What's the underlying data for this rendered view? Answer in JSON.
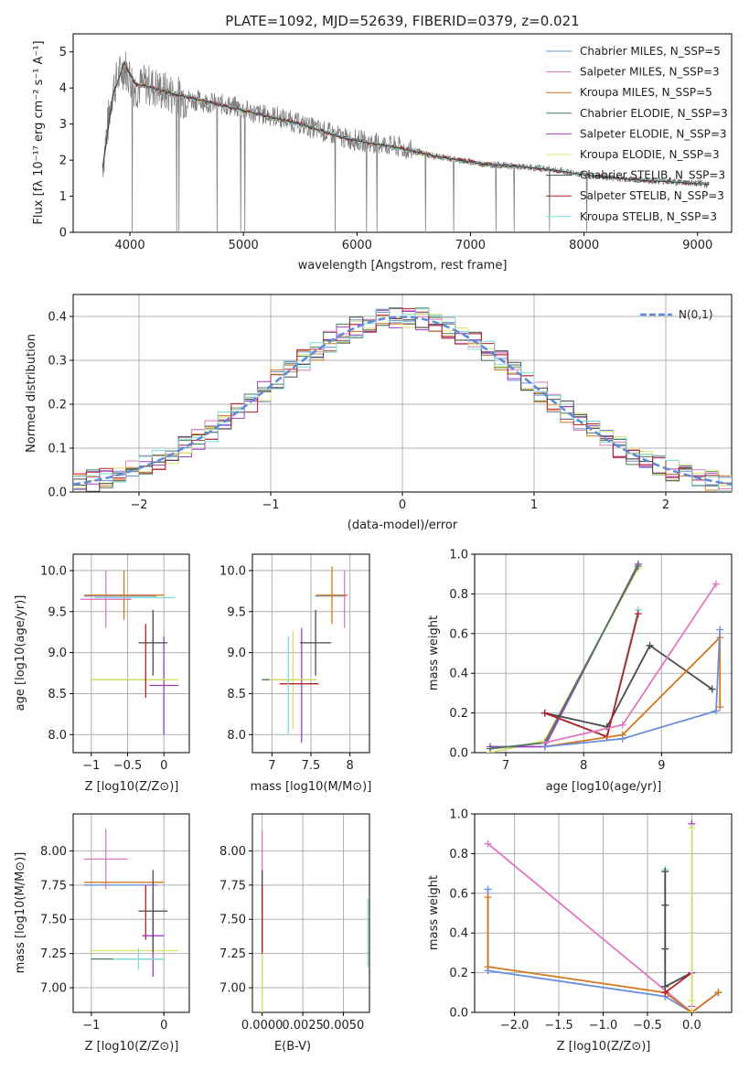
{
  "chart_data": [
    {
      "id": "spectrum",
      "type": "line",
      "title": "PLATE=1092, MJD=52639, FIBERID=0379, z=0.021",
      "xlabel": "wavelength [Angstrom, rest frame]",
      "ylabel": "Flux [fλ 10⁻¹⁷ erg cm⁻² s⁻¹ A⁻¹]",
      "xlim": [
        3500,
        9300
      ],
      "ylim": [
        0,
        5.5
      ],
      "xticks": [
        4000,
        5000,
        6000,
        7000,
        8000,
        9000
      ],
      "yticks": [
        0,
        1,
        2,
        3,
        4,
        5
      ],
      "grid": false,
      "legend_position": "top-right",
      "data_color": "#808080",
      "data_points": [
        [
          3760,
          1.9
        ],
        [
          3850,
          4.0
        ],
        [
          3950,
          4.6
        ],
        [
          4050,
          4.0
        ],
        [
          4150,
          4.1
        ],
        [
          4300,
          3.9
        ],
        [
          4500,
          3.7
        ],
        [
          4700,
          3.6
        ],
        [
          4900,
          3.5
        ],
        [
          5100,
          3.3
        ],
        [
          5300,
          3.2
        ],
        [
          5500,
          3.0
        ],
        [
          5700,
          2.8
        ],
        [
          5900,
          2.6
        ],
        [
          6100,
          2.5
        ],
        [
          6300,
          2.4
        ],
        [
          6500,
          2.25
        ],
        [
          6700,
          2.1
        ],
        [
          6900,
          2.0
        ],
        [
          7100,
          1.9
        ],
        [
          7300,
          1.85
        ],
        [
          7500,
          1.8
        ],
        [
          7700,
          1.75
        ],
        [
          7900,
          1.65
        ],
        [
          8100,
          1.55
        ],
        [
          8300,
          1.5
        ],
        [
          8500,
          1.45
        ],
        [
          8700,
          1.42
        ],
        [
          8900,
          1.38
        ],
        [
          9100,
          1.33
        ]
      ],
      "model_points": [
        [
          3760,
          1.8
        ],
        [
          3850,
          3.8
        ],
        [
          3950,
          4.7
        ],
        [
          4050,
          4.1
        ],
        [
          4150,
          4.05
        ],
        [
          4300,
          3.9
        ],
        [
          4500,
          3.75
        ],
        [
          4700,
          3.6
        ],
        [
          4900,
          3.45
        ],
        [
          5100,
          3.3
        ],
        [
          5300,
          3.15
        ],
        [
          5500,
          3.0
        ],
        [
          5700,
          2.8
        ],
        [
          5900,
          2.6
        ],
        [
          6100,
          2.48
        ],
        [
          6300,
          2.38
        ],
        [
          6500,
          2.25
        ],
        [
          6700,
          2.1
        ],
        [
          6900,
          2.0
        ],
        [
          7100,
          1.9
        ],
        [
          7300,
          1.85
        ],
        [
          7500,
          1.8
        ],
        [
          7700,
          1.74
        ],
        [
          7900,
          1.64
        ],
        [
          8100,
          1.55
        ],
        [
          8300,
          1.5
        ],
        [
          8500,
          1.44
        ],
        [
          8700,
          1.41
        ],
        [
          8900,
          1.37
        ],
        [
          9100,
          1.33
        ]
      ],
      "series": [
        {
          "name": "Chabrier MILES, N_SSP=5",
          "color": "#6a8fdc"
        },
        {
          "name": "Salpeter MILES, N_SSP=3",
          "color": "#e377c2"
        },
        {
          "name": "Kroupa MILES, N_SSP=5",
          "color": "#d4781f"
        },
        {
          "name": "Chabrier ELODIE, N_SSP=3",
          "color": "#4d7a5a"
        },
        {
          "name": "Salpeter ELODIE, N_SSP=3",
          "color": "#9b3fc4"
        },
        {
          "name": "Kroupa ELODIE, N_SSP=3",
          "color": "#d9e26a"
        },
        {
          "name": "Chabrier STELIB, N_SSP=3",
          "color": "#4a4a4a"
        },
        {
          "name": "Salpeter STELIB, N_SSP=3",
          "color": "#b5202b"
        },
        {
          "name": "Kroupa STELIB, N_SSP=3",
          "color": "#7fdbd7"
        }
      ]
    },
    {
      "id": "residuals",
      "type": "line",
      "xlabel": "(data-model)/error",
      "ylabel": "Normed distribution",
      "xlim": [
        -2.5,
        2.5
      ],
      "ylim": [
        0,
        0.45
      ],
      "xticks": [
        -2,
        -1,
        0,
        1,
        2
      ],
      "yticks": [
        0.0,
        0.1,
        0.2,
        0.3,
        0.4
      ],
      "grid": true,
      "legend_position": "top-right",
      "curve_name": "N(0,1)",
      "curve_color": "#5b8bd9",
      "bin_width": 0.1
    },
    {
      "id": "age-vs-Z",
      "type": "scatter",
      "xlabel": "Z [log10(Z/Z⊙)]",
      "ylabel": "age  [log10(age/yr)]",
      "xlim": [
        -1.25,
        0.35
      ],
      "ylim": [
        7.78,
        10.2
      ],
      "xticks": [
        -1,
        -0.5,
        0
      ],
      "xticklabels": [
        "−1",
        "−0.5",
        "0"
      ],
      "yticks": [
        8.0,
        8.5,
        9.0,
        9.5,
        10.0
      ],
      "grid": true,
      "points": [
        {
          "x": -0.6,
          "xerr": 0.5,
          "y": 9.69,
          "yerr": 0.0,
          "color": "#6a8fdc"
        },
        {
          "x": -0.8,
          "xerr": 0.35,
          "y": 9.65,
          "yerr": 0.35,
          "color": "#e377c2"
        },
        {
          "x": -0.55,
          "xerr": 0.55,
          "y": 9.7,
          "yerr": 0.3,
          "color": "#d4781f"
        },
        {
          "x": -0.5,
          "xerr": 0.5,
          "y": 8.67,
          "yerr": 0.0,
          "color": "#4d7a5a"
        },
        {
          "x": 0.0,
          "xerr": 0.2,
          "y": 8.6,
          "yerr": 0.6,
          "color": "#9b3fc4"
        },
        {
          "x": -0.4,
          "xerr": 0.6,
          "y": 8.67,
          "yerr": 0.0,
          "color": "#d9e26a"
        },
        {
          "x": -0.15,
          "xerr": 0.2,
          "y": 9.12,
          "yerr": 0.4,
          "color": "#4a4a4a"
        },
        {
          "x": -0.25,
          "xerr": 0.0,
          "y": 8.9,
          "yerr": 0.45,
          "color": "#b5202b"
        },
        {
          "x": -0.4,
          "xerr": 0.55,
          "y": 9.67,
          "yerr": 0.0,
          "color": "#7fdbd7"
        }
      ]
    },
    {
      "id": "age-vs-mass",
      "type": "scatter",
      "xlabel": "mass [log10(M/M⊙)]",
      "xlim": [
        6.75,
        8.25
      ],
      "ylim": [
        7.78,
        10.2
      ],
      "xticks": [
        7.0,
        7.5,
        8.0
      ],
      "yticks": [
        8.0,
        8.5,
        9.0,
        9.5,
        10.0
      ],
      "grid": true,
      "points": [
        {
          "x": 7.75,
          "xerr": 0.2,
          "y": 9.69,
          "yerr": 0.0,
          "color": "#6a8fdc"
        },
        {
          "x": 7.93,
          "xerr": 0.0,
          "y": 9.65,
          "yerr": 0.35,
          "color": "#e377c2"
        },
        {
          "x": 7.77,
          "xerr": 0.2,
          "y": 9.7,
          "yerr": 0.35,
          "color": "#d4781f"
        },
        {
          "x": 7.22,
          "xerr": 0.35,
          "y": 8.67,
          "yerr": 0.0,
          "color": "#4d7a5a"
        },
        {
          "x": 7.38,
          "xerr": 0.0,
          "y": 8.6,
          "yerr": 0.7,
          "color": "#9b3fc4"
        },
        {
          "x": 7.27,
          "xerr": 0.3,
          "y": 8.67,
          "yerr": 0.6,
          "color": "#d9e26a"
        },
        {
          "x": 7.56,
          "xerr": 0.2,
          "y": 9.12,
          "yerr": 0.4,
          "color": "#4a4a4a"
        },
        {
          "x": 7.35,
          "xerr": 0.25,
          "y": 8.62,
          "yerr": 0.0,
          "color": "#b5202b"
        },
        {
          "x": 7.21,
          "xerr": 0.0,
          "y": 8.6,
          "yerr": 0.6,
          "color": "#7fdbd7"
        }
      ]
    },
    {
      "id": "weight-vs-age",
      "type": "line",
      "xlabel": "age  [log10(age/yr)]",
      "ylabel": "mass weight",
      "xlim": [
        6.6,
        9.9
      ],
      "ylim": [
        0,
        1
      ],
      "xticks": [
        7,
        8,
        9
      ],
      "yticks": [
        0.0,
        0.2,
        0.4,
        0.6,
        0.8,
        1.0
      ],
      "grid": true,
      "series": [
        {
          "color": "#d9e26a",
          "points": [
            [
              6.8,
              0.0
            ],
            [
              7.5,
              0.06
            ],
            [
              8.7,
              0.93
            ]
          ]
        },
        {
          "color": "#9b3fc4",
          "points": [
            [
              6.8,
              0.03
            ],
            [
              7.5,
              0.03
            ],
            [
              8.7,
              0.95
            ]
          ]
        },
        {
          "color": "#4d7a5a",
          "points": [
            [
              6.8,
              0.02
            ],
            [
              7.5,
              0.05
            ],
            [
              8.7,
              0.94
            ]
          ]
        },
        {
          "color": "#7fdbd7",
          "points": [
            [
              7.5,
              0.2
            ],
            [
              8.3,
              0.08
            ],
            [
              8.7,
              0.72
            ]
          ]
        },
        {
          "color": "#4a4a4a",
          "points": [
            [
              7.5,
              0.2
            ],
            [
              8.3,
              0.13
            ],
            [
              8.85,
              0.54
            ],
            [
              9.65,
              0.32
            ]
          ]
        },
        {
          "color": "#b5202b",
          "points": [
            [
              7.5,
              0.2
            ],
            [
              8.3,
              0.08
            ],
            [
              8.7,
              0.7
            ]
          ]
        },
        {
          "color": "#e377c2",
          "points": [
            [
              7.5,
              0.05
            ],
            [
              8.5,
              0.14
            ],
            [
              9.7,
              0.85
            ]
          ]
        },
        {
          "color": "#d4781f",
          "points": [
            [
              7.5,
              0.03
            ],
            [
              8.5,
              0.09
            ],
            [
              9.75,
              0.58
            ],
            [
              9.75,
              0.23
            ]
          ]
        },
        {
          "color": "#6a8fdc",
          "points": [
            [
              7.5,
              0.03
            ],
            [
              8.5,
              0.07
            ],
            [
              9.7,
              0.21
            ],
            [
              9.75,
              0.62
            ]
          ]
        }
      ]
    },
    {
      "id": "mass-vs-Z",
      "type": "scatter",
      "xlabel": "Z [log10(Z/Z⊙)]",
      "ylabel": "mass [log10(M/M⊙)]",
      "xlim": [
        -1.25,
        0.35
      ],
      "ylim": [
        6.82,
        8.27
      ],
      "xticks": [
        -1,
        0
      ],
      "xticklabels": [
        "−1",
        "0"
      ],
      "yticks": [
        7.0,
        7.25,
        7.5,
        7.75,
        8.0
      ],
      "grid": true,
      "points": [
        {
          "x": -0.6,
          "xerr": 0.5,
          "y": 7.75,
          "yerr": 0.0,
          "color": "#6a8fdc"
        },
        {
          "x": -0.8,
          "xerr": 0.3,
          "y": 7.94,
          "yerr": 0.22,
          "color": "#e377c2"
        },
        {
          "x": -0.55,
          "xerr": 0.55,
          "y": 7.77,
          "yerr": 0.0,
          "color": "#d4781f"
        },
        {
          "x": -0.5,
          "xerr": 0.5,
          "y": 7.21,
          "yerr": 0.0,
          "color": "#4d7a5a"
        },
        {
          "x": -0.15,
          "xerr": 0.15,
          "y": 7.38,
          "yerr": 0.3,
          "color": "#9b3fc4"
        },
        {
          "x": -0.4,
          "xerr": 0.6,
          "y": 7.27,
          "yerr": 0.0,
          "color": "#d9e26a"
        },
        {
          "x": -0.15,
          "xerr": 0.2,
          "y": 7.56,
          "yerr": 0.3,
          "color": "#4a4a4a"
        },
        {
          "x": -0.25,
          "xerr": 0.0,
          "y": 7.55,
          "yerr": 0.2,
          "color": "#b5202b"
        },
        {
          "x": -0.35,
          "xerr": 0.35,
          "y": 7.21,
          "yerr": 0.08,
          "color": "#7fdbd7"
        }
      ]
    },
    {
      "id": "mass-vs-ebv",
      "type": "scatter",
      "xlabel": "E(B-V)",
      "xlim": [
        -0.0006,
        0.0066
      ],
      "ylim": [
        6.82,
        8.27
      ],
      "xticks": [
        0.0,
        0.0025,
        0.005
      ],
      "xticklabels": [
        "0.0000",
        "0.0025",
        "0.0050"
      ],
      "yticks": [
        7.0,
        7.25,
        7.5,
        7.75,
        8.0
      ],
      "grid": true,
      "points": [
        {
          "x": 0.0,
          "y": 7.55,
          "yerr": 0.6,
          "color": "#e377c2"
        },
        {
          "x": 0.0,
          "y": 7.3,
          "yerr": 0.5,
          "color": "#d9e26a"
        },
        {
          "x": 0.0,
          "y": 7.56,
          "yerr": 0.3,
          "color": "#4a4a4a"
        },
        {
          "x": 0.0,
          "y": 7.5,
          "yerr": 0.25,
          "color": "#b5202b"
        },
        {
          "x": 0.0065,
          "y": 7.4,
          "yerr": 0.25,
          "color": "#7fdbd7"
        }
      ]
    },
    {
      "id": "weight-vs-Z",
      "type": "line",
      "xlabel": "Z [log10(Z/Z⊙)]",
      "ylabel": "mass weight",
      "xlim": [
        -2.45,
        0.45
      ],
      "ylim": [
        0,
        1
      ],
      "xticks": [
        -2.0,
        -1.5,
        -1.0,
        -0.5,
        0.0
      ],
      "xticklabels": [
        "−2.0",
        "−1.5",
        "−1.0",
        "−0.5",
        "0.0"
      ],
      "yticks": [
        0.0,
        0.2,
        0.4,
        0.6,
        0.8,
        1.0
      ],
      "grid": true,
      "series": [
        {
          "color": "#e377c2",
          "points": [
            [
              -2.3,
              0.85
            ],
            [
              0.0,
              0.0
            ],
            [
              0.3,
              0.1
            ]
          ]
        },
        {
          "color": "#6a8fdc",
          "points": [
            [
              -2.3,
              0.62
            ],
            [
              -2.3,
              0.21
            ],
            [
              -0.3,
              0.08
            ],
            [
              0.0,
              0.0
            ],
            [
              0.3,
              0.1
            ]
          ]
        },
        {
          "color": "#d4781f",
          "points": [
            [
              -2.3,
              0.58
            ],
            [
              -2.3,
              0.23
            ],
            [
              -0.3,
              0.1
            ],
            [
              0.0,
              0.0
            ],
            [
              0.3,
              0.1
            ]
          ]
        },
        {
          "color": "#7fdbd7",
          "points": [
            [
              -0.3,
              0.72
            ],
            [
              -0.3,
              0.13
            ],
            [
              0.0,
              0.2
            ]
          ]
        },
        {
          "color": "#4a4a4a",
          "points": [
            [
              -0.3,
              0.71
            ],
            [
              -0.3,
              0.54
            ],
            [
              -0.3,
              0.32
            ],
            [
              -0.3,
              0.13
            ],
            [
              0.0,
              0.2
            ]
          ]
        },
        {
          "color": "#b5202b",
          "points": [
            [
              -0.3,
              0.1
            ],
            [
              0.0,
              0.2
            ]
          ]
        },
        {
          "color": "#9b3fc4",
          "points": [
            [
              0.0,
              0.95
            ],
            [
              0.0,
              0.2
            ],
            [
              0.0,
              0.03
            ]
          ]
        },
        {
          "color": "#d9e26a",
          "points": [
            [
              0.0,
              0.93
            ],
            [
              0.0,
              0.06
            ],
            [
              0.0,
              0.0
            ]
          ]
        }
      ]
    }
  ]
}
